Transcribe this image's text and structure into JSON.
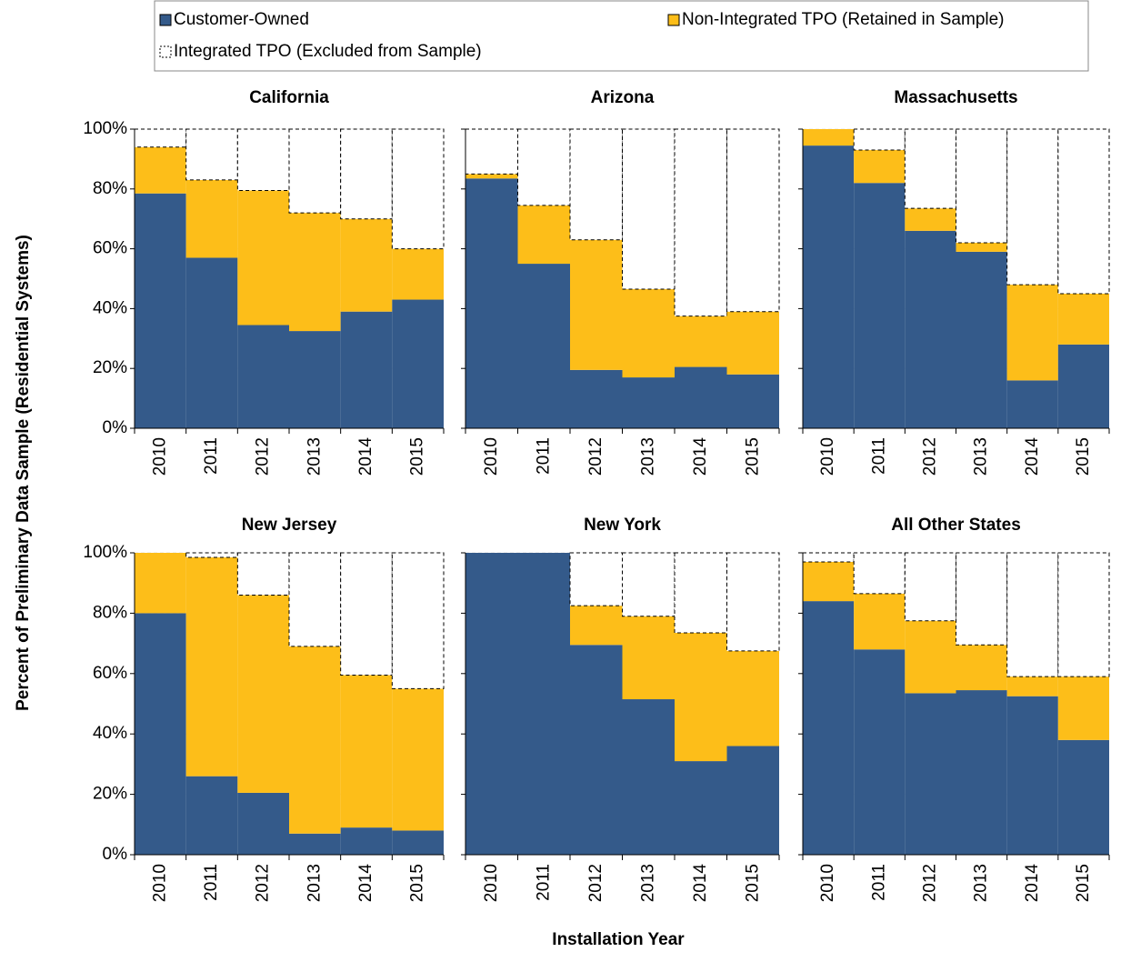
{
  "chart_data": {
    "type": "stacked_bar",
    "y_label": "Percent of Preliminary  Data Sample (Residential Systems)",
    "x_label": "Installation Year",
    "categories": [
      "2010",
      "2011",
      "2012",
      "2013",
      "2014",
      "2015"
    ],
    "ylim": [
      0,
      100
    ],
    "yticks": [
      {
        "value": 0,
        "label": "0%"
      },
      {
        "value": 20,
        "label": "20%"
      },
      {
        "value": 40,
        "label": "40%"
      },
      {
        "value": 60,
        "label": "60%"
      },
      {
        "value": 80,
        "label": "80%"
      },
      {
        "value": 100,
        "label": "100%"
      }
    ],
    "grid": true,
    "series": [
      {
        "name": "Customer-Owned",
        "color": "#345a8a"
      },
      {
        "name": "Non-Integrated TPO (Retained in Sample)",
        "color": "#fdbe19"
      },
      {
        "name": "Integrated TPO (Excluded from Sample)",
        "color": "#ffffff",
        "dashed": true
      }
    ],
    "panels": [
      {
        "title": "California",
        "series": [
          {
            "values": [
              78.5,
              57,
              34.5,
              32.5,
              39,
              43
            ]
          },
          {
            "values": [
              15.5,
              26,
              45,
              39.5,
              31,
              17
            ]
          },
          {
            "values": [
              6,
              17,
              20.5,
              28,
              30,
              40
            ]
          }
        ]
      },
      {
        "title": "Arizona",
        "series": [
          {
            "values": [
              83.5,
              55,
              19.5,
              17,
              20.5,
              18
            ]
          },
          {
            "values": [
              1.5,
              19.5,
              43.5,
              29.5,
              17,
              21
            ]
          },
          {
            "values": [
              15,
              25.5,
              37,
              53.5,
              62.5,
              61
            ]
          }
        ]
      },
      {
        "title": "Massachusetts",
        "series": [
          {
            "values": [
              94.5,
              82,
              66,
              59,
              16,
              28
            ]
          },
          {
            "values": [
              5.5,
              11,
              7.5,
              3,
              32,
              17
            ]
          },
          {
            "values": [
              0,
              7,
              26.5,
              38,
              52,
              55
            ]
          }
        ]
      },
      {
        "title": "New Jersey",
        "series": [
          {
            "values": [
              80,
              26,
              20.5,
              7,
              9,
              8
            ]
          },
          {
            "values": [
              20,
              72.5,
              65.5,
              62,
              50.5,
              47
            ]
          },
          {
            "values": [
              0,
              1.5,
              14,
              31,
              40.5,
              45
            ]
          }
        ]
      },
      {
        "title": "New York",
        "series": [
          {
            "values": [
              100,
              100,
              69.5,
              51.5,
              31,
              36
            ]
          },
          {
            "values": [
              0,
              0,
              13,
              27.5,
              42.5,
              31.5
            ]
          },
          {
            "values": [
              0,
              0,
              17.5,
              21,
              26.5,
              32.5
            ]
          }
        ]
      },
      {
        "title": "All Other States",
        "series": [
          {
            "values": [
              84,
              68,
              53.5,
              54.5,
              52.5,
              38
            ]
          },
          {
            "values": [
              13,
              18.5,
              24,
              15,
              6.5,
              21
            ]
          },
          {
            "values": [
              3,
              13.5,
              22.5,
              30.5,
              41,
              41
            ]
          }
        ]
      }
    ]
  }
}
